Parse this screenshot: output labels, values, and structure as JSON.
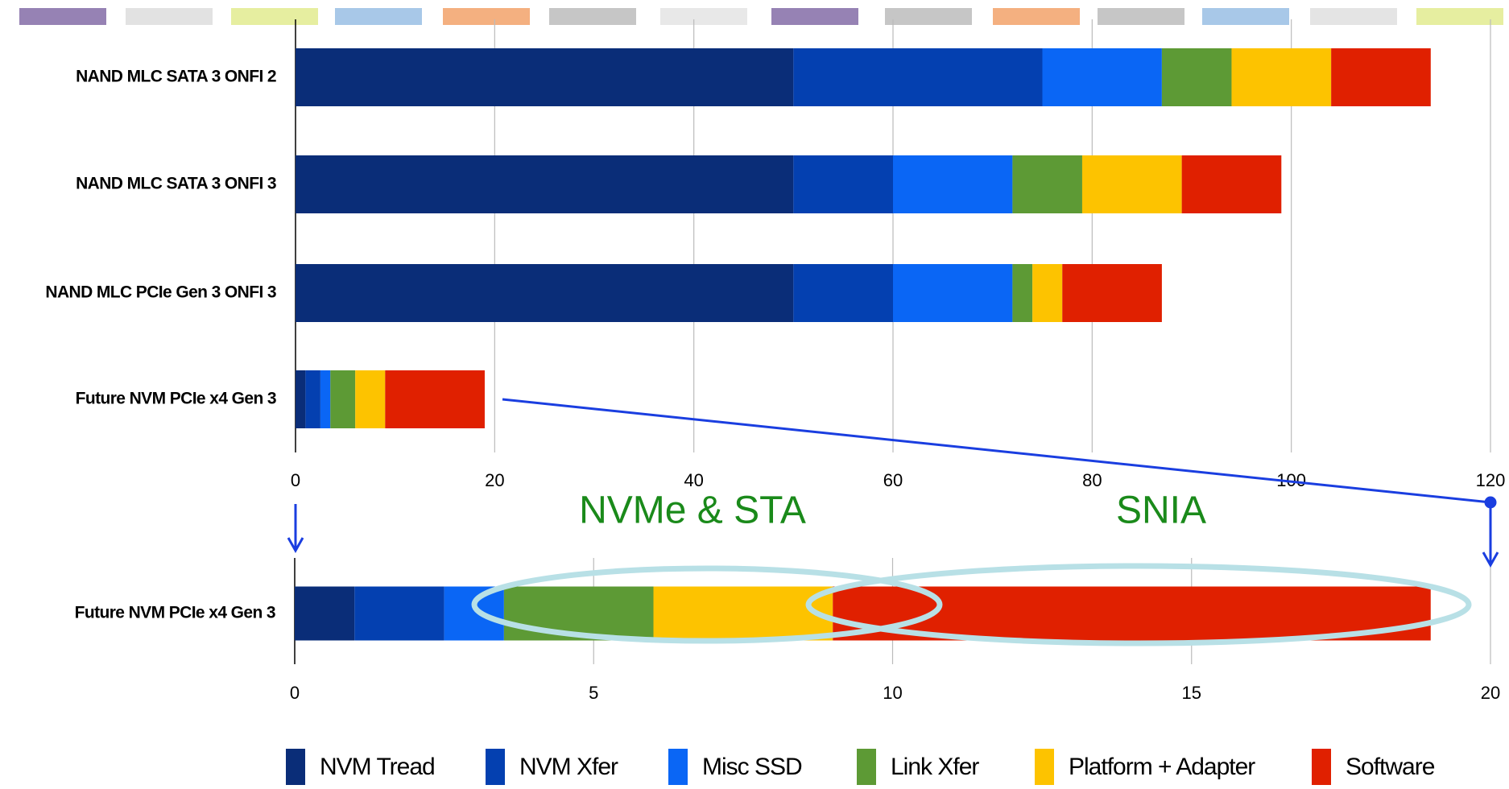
{
  "chart_data": [
    {
      "type": "bar",
      "orientation": "horizontal",
      "stacked": true,
      "categories": [
        "NAND MLC SATA 3 ONFI 2",
        "NAND MLC SATA 3 ONFI 3",
        "NAND MLC PCIe Gen 3 ONFI 3",
        "Future NVM PCIe x4 Gen 3"
      ],
      "series": [
        {
          "color": "#0a2d78",
          "values": [
            50,
            50,
            50,
            1
          ]
        },
        {
          "color": "#0440b0",
          "values": [
            25,
            10,
            10,
            1.5
          ]
        },
        {
          "color": "#0a66f5",
          "values": [
            12,
            12,
            12,
            1
          ]
        },
        {
          "color": "#5d9a35",
          "values": [
            7,
            7,
            2,
            2.5
          ]
        },
        {
          "color": "#fdc300",
          "values": [
            10,
            10,
            3,
            3
          ]
        },
        {
          "color": "#e02000",
          "values": [
            10,
            10,
            10,
            10
          ]
        }
      ],
      "xlim": [
        0,
        120
      ],
      "xticks": [
        0,
        20,
        40,
        60,
        80,
        100,
        120
      ],
      "grid": true
    },
    {
      "type": "bar",
      "orientation": "horizontal",
      "stacked": true,
      "categories": [
        "Future NVM PCIe x4 Gen 3"
      ],
      "series": [
        {
          "name": "NVM Tread",
          "color": "#0a2d78",
          "values": [
            1
          ]
        },
        {
          "name": "NVM Xfer",
          "color": "#0440b0",
          "values": [
            1.5
          ]
        },
        {
          "name": "Misc SSD",
          "color": "#0a66f5",
          "values": [
            1
          ]
        },
        {
          "name": "Link Xfer",
          "color": "#5d9a35",
          "values": [
            2.5
          ]
        },
        {
          "name": "Platform + Adapter",
          "color": "#fdc300",
          "values": [
            3
          ]
        },
        {
          "name": "Software",
          "color": "#e02000",
          "values": [
            10
          ]
        }
      ],
      "xlim": [
        0,
        20
      ],
      "xticks": [
        0,
        5,
        10,
        15,
        20
      ],
      "grid": true,
      "annotations": [
        "NVMe & STA",
        "SNIA"
      ],
      "legend": "bottom"
    }
  ]
}
